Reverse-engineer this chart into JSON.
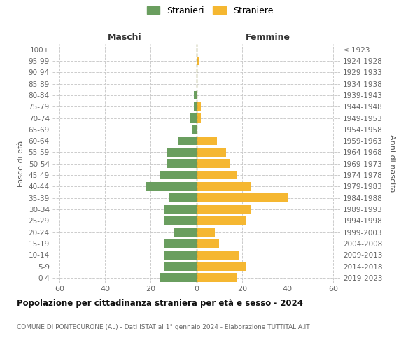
{
  "age_groups": [
    "0-4",
    "5-9",
    "10-14",
    "15-19",
    "20-24",
    "25-29",
    "30-34",
    "35-39",
    "40-44",
    "45-49",
    "50-54",
    "55-59",
    "60-64",
    "65-69",
    "70-74",
    "75-79",
    "80-84",
    "85-89",
    "90-94",
    "95-99",
    "100+"
  ],
  "birth_years": [
    "2019-2023",
    "2014-2018",
    "2009-2013",
    "2004-2008",
    "1999-2003",
    "1994-1998",
    "1989-1993",
    "1984-1988",
    "1979-1983",
    "1974-1978",
    "1969-1973",
    "1964-1968",
    "1959-1963",
    "1954-1958",
    "1949-1953",
    "1944-1948",
    "1939-1943",
    "1934-1938",
    "1929-1933",
    "1924-1928",
    "≤ 1923"
  ],
  "males": [
    16,
    14,
    14,
    14,
    10,
    14,
    14,
    12,
    22,
    16,
    13,
    13,
    8,
    2,
    3,
    1,
    1,
    0,
    0,
    0,
    0
  ],
  "females": [
    18,
    22,
    19,
    10,
    8,
    22,
    24,
    40,
    24,
    18,
    15,
    13,
    9,
    0,
    2,
    2,
    0,
    0,
    0,
    1,
    0
  ],
  "male_color": "#6a9e5f",
  "female_color": "#f5b731",
  "background_color": "#ffffff",
  "grid_color": "#cccccc",
  "title": "Popolazione per cittadinanza straniera per età e sesso - 2024",
  "subtitle": "COMUNE DI PONTECURONE (AL) - Dati ISTAT al 1° gennaio 2024 - Elaborazione TUTTITALIA.IT",
  "xlabel_left": "Maschi",
  "xlabel_right": "Femmine",
  "ylabel_left": "Fasce di età",
  "ylabel_right": "Anni di nascita",
  "legend_male": "Stranieri",
  "legend_female": "Straniere",
  "xlim": 63
}
